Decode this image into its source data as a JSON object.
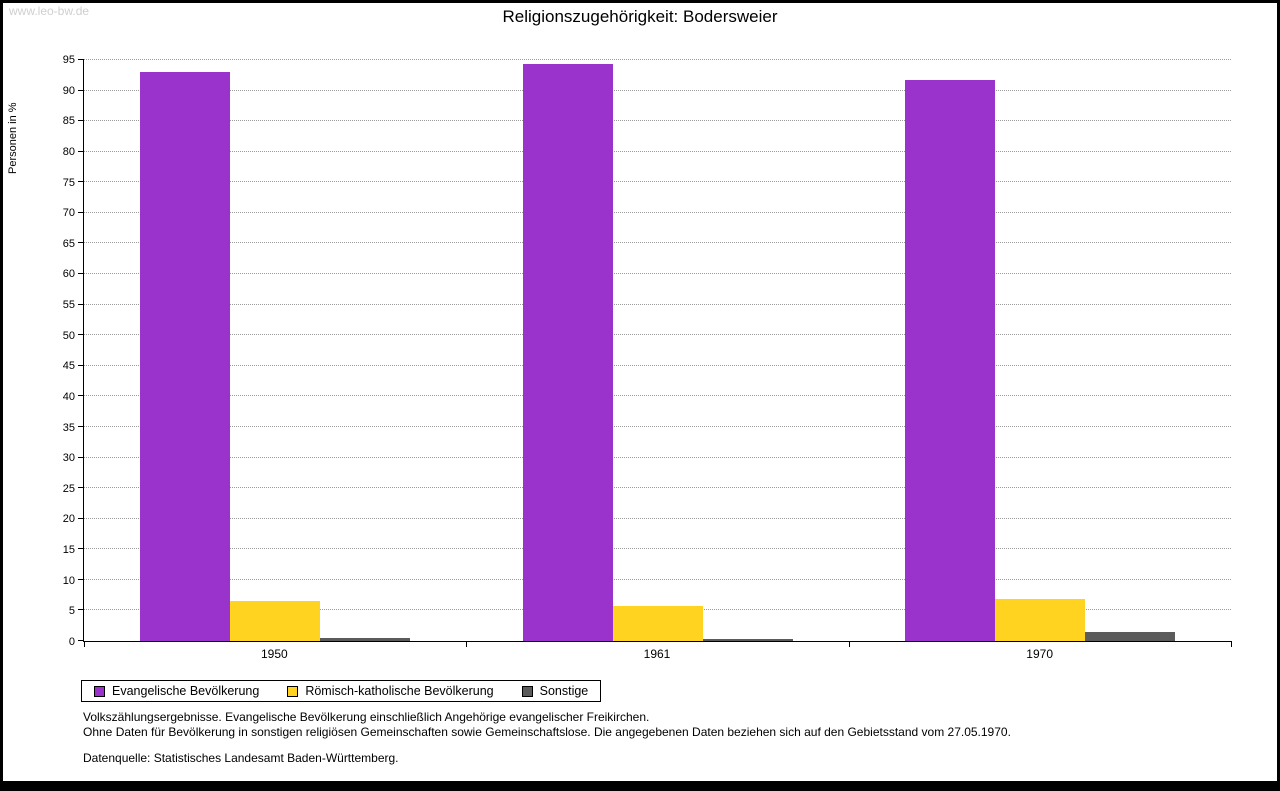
{
  "watermark": "www.leo-bw.de",
  "chart_data": {
    "type": "bar",
    "title": "Religionszugehörigkeit: Bodersweier",
    "ylabel": "Personen in %",
    "xlabel": "",
    "categories": [
      "1950",
      "1961",
      "1970"
    ],
    "series": [
      {
        "name": "Evangelische Bevölkerung",
        "color": "#9933CC",
        "values": [
          93.0,
          94.3,
          91.8
        ]
      },
      {
        "name": "Römisch-katholische Bevölkerung",
        "color": "#FFD320",
        "values": [
          6.5,
          5.7,
          6.9
        ]
      },
      {
        "name": "Sonstige",
        "color": "#5B5B5B",
        "values": [
          0.5,
          0.3,
          1.4
        ]
      }
    ],
    "ylim": [
      0,
      95
    ],
    "ytick_step": 5,
    "grid": true,
    "legend_position": "bottom-left"
  },
  "footnotes": {
    "line1": "Volkszählungsergebnisse. Evangelische Bevölkerung einschließlich Angehörige evangelischer Freikirchen.",
    "line2": "Ohne Daten für Bevölkerung in sonstigen religiösen Gemeinschaften sowie Gemeinschaftslose. Die angegebenen Daten beziehen sich auf den Gebietsstand vom 27.05.1970.",
    "line3": "Datenquelle: Statistisches Landesamt Baden-Württemberg."
  }
}
